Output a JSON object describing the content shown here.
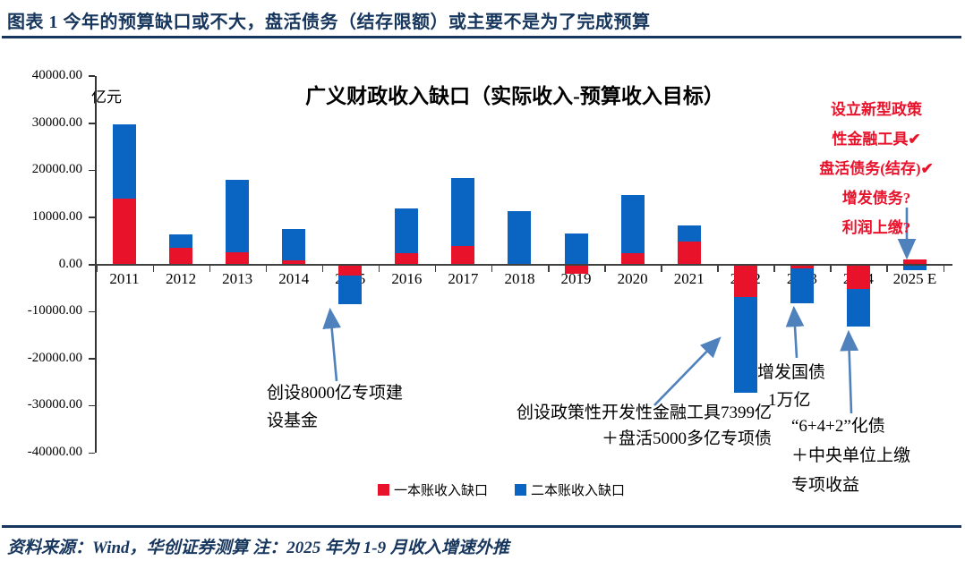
{
  "header": {
    "caption": "图表 1  今年的预算缺口或不大，盘活债务（结存限额）或主要不是为了完成预算"
  },
  "footer": {
    "source": "资料来源：Wind，华创证券测算  注：2025 年为 1-9 月收入增速外推"
  },
  "chart_data": {
    "type": "bar",
    "stacked": true,
    "title": "广义财政收入缺口（实际收入-预算收入目标）",
    "unit": "亿元",
    "categories": [
      "2011",
      "2012",
      "2013",
      "2014",
      "2015",
      "2016",
      "2017",
      "2018",
      "2019",
      "2020",
      "2021",
      "2022",
      "2023",
      "2024",
      "2025 E"
    ],
    "series": [
      {
        "name": "一本账收入缺口",
        "color": "#e8122b",
        "values": [
          14000,
          3500,
          2500,
          800,
          -2000,
          2400,
          3900,
          0,
          -1700,
          2400,
          4800,
          -6700,
          -500,
          -4900,
          1100
        ]
      },
      {
        "name": "二本账收入缺口",
        "color": "#0a64c2",
        "values": [
          15700,
          2900,
          15500,
          6800,
          -6100,
          9500,
          14400,
          11400,
          6500,
          12300,
          3500,
          -20200,
          -7500,
          -8100,
          -1000
        ]
      }
    ],
    "ylim": [
      -40000,
      40000
    ],
    "grid": false,
    "legend_position": "bottom",
    "y_ticks": [
      {
        "v": 40000,
        "label": "40000.00"
      },
      {
        "v": 30000,
        "label": "30000.00"
      },
      {
        "v": 20000,
        "label": "20000.00"
      },
      {
        "v": 10000,
        "label": "10000.00"
      },
      {
        "v": 0,
        "label": "0.00"
      },
      {
        "v": -10000,
        "label": "-10000.00"
      },
      {
        "v": -20000,
        "label": "-20000.00"
      },
      {
        "v": -30000,
        "label": "-30000.00"
      },
      {
        "v": -40000,
        "label": "-40000.00"
      }
    ]
  },
  "annotations": {
    "y2015": {
      "lines": [
        "创设8000亿专项建",
        "设基金"
      ]
    },
    "y2022": {
      "lines": [
        "创设政策性开发性金融工具7399亿",
        "＋盘活5000多亿专项债"
      ]
    },
    "y2023": {
      "lines": [
        "增发国债",
        "1万亿"
      ]
    },
    "y2024": {
      "lines": [
        "“6+4+2”化债",
        "＋中央单位上缴",
        "专项收益"
      ]
    },
    "y2025": {
      "lines": [
        "设立新型政策",
        "性金融工具✔",
        "盘活债务(结存)✔",
        "增发债务?",
        "利润上缴?"
      ]
    }
  },
  "colors": {
    "navy": "#17365d",
    "arrow_blue": "#4f81bd",
    "red_series": "#e8122b",
    "blue_series": "#0a64c2"
  }
}
